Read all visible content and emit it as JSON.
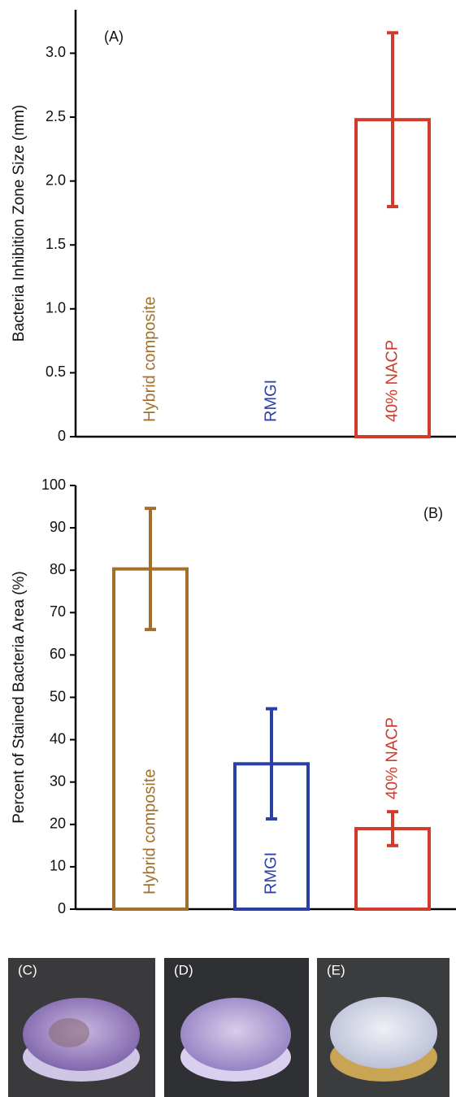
{
  "chart_data": [
    {
      "type": "bar",
      "annotation": "(A)",
      "y_label": "Bacteria Inhibition Zone Size (mm)",
      "categories": [
        "Hybrid composite",
        "RMGI",
        "40% NACP"
      ],
      "values": [
        0,
        0,
        2.48
      ],
      "errors": [
        0,
        0,
        0.68
      ],
      "colors": [
        "#a26f2c",
        "#2b40a6",
        "#d23b2b"
      ],
      "ylim": [
        0,
        3.34
      ],
      "yticks": [
        0,
        0.5,
        {
          "value": 1,
          "label": "1.0"
        },
        1.5,
        {
          "value": 2,
          "label": "2.0"
        },
        2.5,
        {
          "value": 3,
          "label": "3.0"
        }
      ]
    },
    {
      "type": "bar",
      "annotation": "(B)",
      "y_label": "Percent of Stained Bacteria Area (%)",
      "categories": [
        "Hybrid composite",
        "RMGI",
        "40% NACP"
      ],
      "values": [
        80.3,
        34.3,
        19
      ],
      "errors": [
        14.3,
        13,
        4
      ],
      "colors": [
        "#a26f2c",
        "#2b40a6",
        "#d23b2b"
      ],
      "ylim": [
        0,
        100
      ],
      "yticks": [
        0,
        10,
        20,
        30,
        40,
        50,
        60,
        70,
        80,
        90,
        100
      ]
    }
  ],
  "panels": [
    {
      "label": "(C)"
    },
    {
      "label": "(D)"
    },
    {
      "label": "(E)"
    }
  ]
}
